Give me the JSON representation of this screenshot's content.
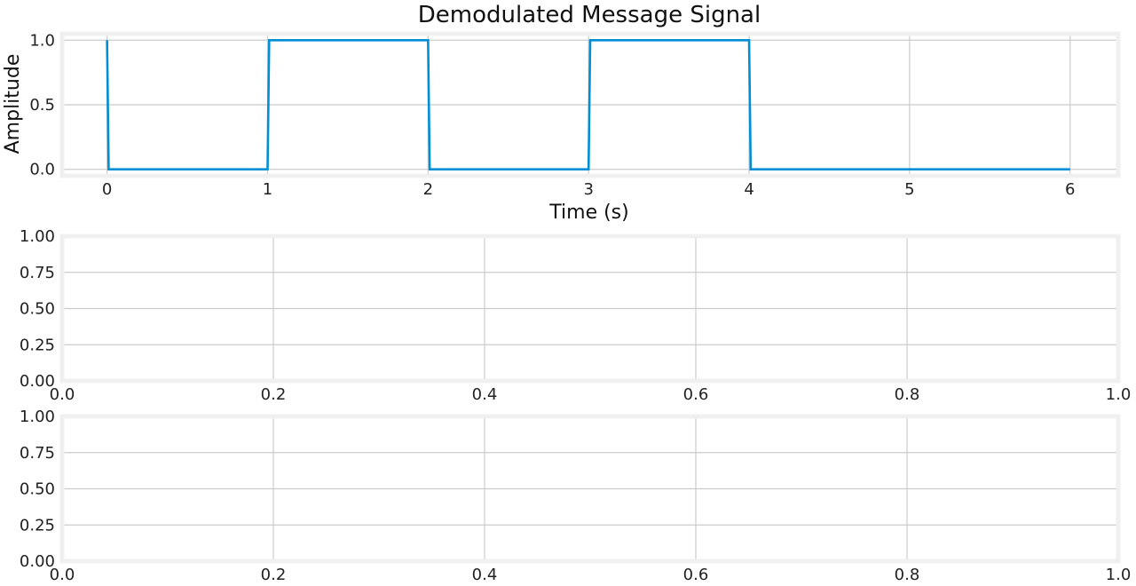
{
  "figure": {
    "background": "#ffffff",
    "frame_color": "#f0f0f0",
    "grid_color": "#cbcbcb",
    "line_color": "#008fd5"
  },
  "chart_data": [
    {
      "type": "line",
      "title": "Demodulated Message Signal",
      "xlabel": "Time (s)",
      "ylabel": "Amplitude",
      "xlim": [
        -0.28,
        6.3
      ],
      "ylim": [
        -0.05,
        1.05
      ],
      "xticks": [
        0,
        1,
        2,
        3,
        4,
        5,
        6
      ],
      "xtick_labels": [
        "0",
        "1",
        "2",
        "3",
        "4",
        "5",
        "6"
      ],
      "yticks": [
        0.0,
        0.5,
        1.0
      ],
      "ytick_labels": [
        "0.0",
        "0.5",
        "1.0"
      ],
      "grid": true,
      "series": [
        {
          "x": [
            0,
            0.01,
            1.0,
            1.01,
            2.0,
            2.01,
            3.0,
            3.01,
            4.0,
            4.01,
            6.0
          ],
          "y": [
            1,
            0,
            0,
            1,
            1,
            0,
            0,
            1,
            1,
            0,
            0
          ]
        }
      ]
    },
    {
      "type": "line",
      "title": "",
      "xlabel": "",
      "ylabel": "",
      "xlim": [
        0,
        1
      ],
      "ylim": [
        0,
        1
      ],
      "xticks": [
        0,
        0.2,
        0.4,
        0.6,
        0.8,
        1.0
      ],
      "xtick_labels": [
        "0.0",
        "0.2",
        "0.4",
        "0.6",
        "0.8",
        "1.0"
      ],
      "yticks": [
        0,
        0.25,
        0.5,
        0.75,
        1.0
      ],
      "ytick_labels": [
        "0.00",
        "0.25",
        "0.50",
        "0.75",
        "1.00"
      ],
      "grid": true,
      "series": []
    },
    {
      "type": "line",
      "title": "",
      "xlabel": "",
      "ylabel": "",
      "xlim": [
        0,
        1
      ],
      "ylim": [
        0,
        1
      ],
      "xticks": [
        0,
        0.2,
        0.4,
        0.6,
        0.8,
        1.0
      ],
      "xtick_labels": [
        "0.0",
        "0.2",
        "0.4",
        "0.6",
        "0.8",
        "1.0"
      ],
      "yticks": [
        0,
        0.25,
        0.5,
        0.75,
        1.0
      ],
      "ytick_labels": [
        "0.00",
        "0.25",
        "0.50",
        "0.75",
        "1.00"
      ],
      "grid": true,
      "series": []
    }
  ]
}
